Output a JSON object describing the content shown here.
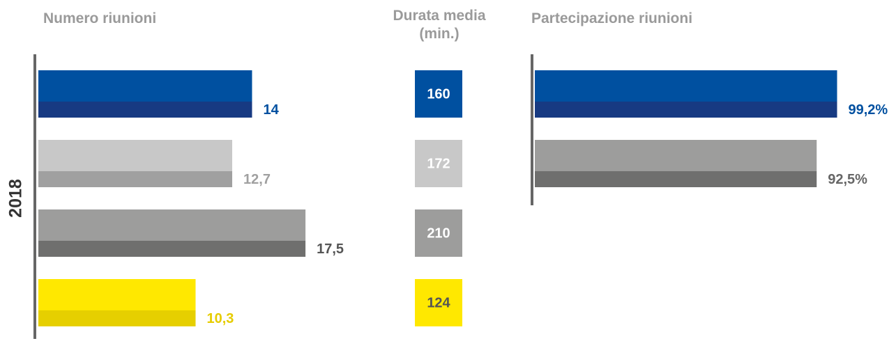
{
  "year": "2018",
  "chart_data": [
    {
      "type": "bar",
      "title": "Numero riunioni",
      "values": [
        14,
        12.7,
        17.5,
        10.3
      ],
      "value_labels": [
        "14",
        "12,7",
        "17,5",
        "10,3"
      ],
      "colors": [
        "#0050a0",
        "#c8c8c8",
        "#9d9d9c",
        "#ffe800"
      ],
      "dark_colors": [
        "#173a82",
        "#a0a0a0",
        "#6f6f6e",
        "#e6cf00"
      ],
      "label_colors": [
        "#0050a0",
        "#a0a0a0",
        "#555555",
        "#e6cc00"
      ],
      "xlim": [
        0,
        18.5
      ]
    },
    {
      "type": "tiles",
      "title": "Durata media (min.)",
      "values": [
        160,
        172,
        210,
        124
      ],
      "colors": [
        "#0050a0",
        "#c8c8c8",
        "#9d9d9c",
        "#ffe800"
      ],
      "text_colors": [
        "#ffffff",
        "#ffffff",
        "#ffffff",
        "#555555"
      ]
    },
    {
      "type": "bar",
      "title": "Partecipazione riunioni",
      "values": [
        99.2,
        92.5
      ],
      "value_labels": [
        "99,2%",
        "92,5%"
      ],
      "colors": [
        "#0050a0",
        "#9d9d9c"
      ],
      "dark_colors": [
        "#173a82",
        "#6f6f6e"
      ],
      "label_colors": [
        "#0050a0",
        "#666666"
      ],
      "xlim": [
        0,
        100
      ]
    }
  ]
}
